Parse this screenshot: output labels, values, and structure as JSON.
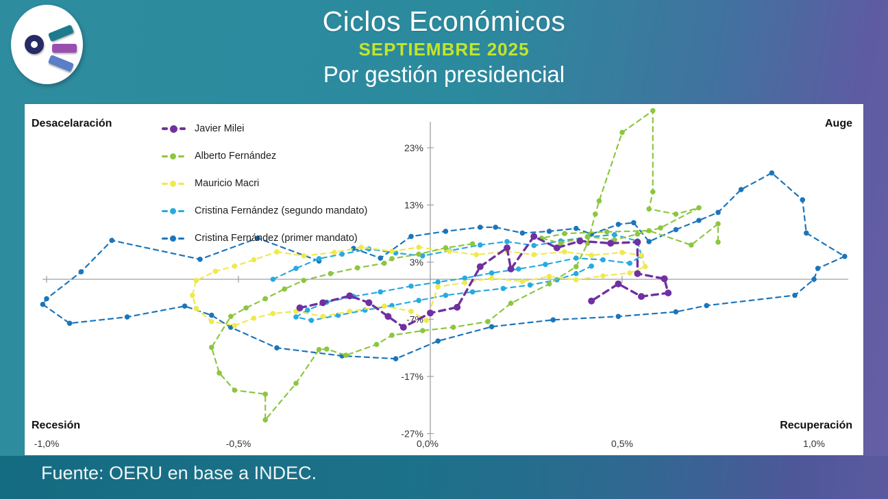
{
  "header": {
    "title": "Ciclos Económicos",
    "subtitle": "SEPTIEMBRE 2025",
    "subtitle2": "Por gestión presidencial",
    "subtitle_color": "#c4e528",
    "logo_colors": {
      "ring": "#272a64",
      "bar_top": "#1c7c8e",
      "bar_mid": "#9a4fae",
      "bar_bottom": "#5b7ec9"
    }
  },
  "footer": {
    "source": "Fuente: OERU en base a INDEC."
  },
  "chart_data": {
    "type": "line",
    "subtype": "connected-scatter cycle plot, dashed lines with point markers",
    "title": "Ciclos Económicos — Por gestión presidencial",
    "xlabel": "",
    "ylabel": "",
    "xlim": [
      -1.09,
      1.13
    ],
    "ylim": [
      -30.8,
      30.8
    ],
    "grid": false,
    "legend_position": "upper left inside plot",
    "axis_color": "#9aa0a6",
    "tick_text_color": "#333333",
    "x_ticks": {
      "values": [
        -1.0,
        -0.5,
        0.0,
        0.5,
        1.0
      ],
      "labels": [
        "-1,0%",
        "-0,5%",
        "0,0%",
        "0,5%",
        "1,0%"
      ]
    },
    "y_ticks": {
      "values": [
        23,
        13,
        3,
        -7,
        -17,
        -27
      ],
      "labels": [
        "23%",
        "13%",
        "3%",
        "-7%",
        "-17%",
        "-27%"
      ]
    },
    "quadrants": {
      "top_left": "Desacelaración",
      "top_right": "Auge",
      "bottom_left": "Recesión",
      "bottom_right": "Recuperación"
    },
    "series": [
      {
        "name": "Javier Milei",
        "color": "#7030a0",
        "emphasis": true,
        "points": [
          [
            -0.34,
            -5.0
          ],
          [
            -0.28,
            -4.1
          ],
          [
            -0.21,
            -2.9
          ],
          [
            -0.16,
            -4.1
          ],
          [
            -0.11,
            -6.5
          ],
          [
            -0.07,
            -8.4
          ],
          [
            0.0,
            -5.9
          ],
          [
            0.07,
            -4.9
          ],
          [
            0.13,
            2.2
          ],
          [
            0.2,
            5.5
          ],
          [
            0.21,
            1.8
          ],
          [
            0.27,
            7.5
          ],
          [
            0.33,
            5.5
          ],
          [
            0.39,
            6.7
          ],
          [
            0.47,
            6.3
          ],
          [
            0.54,
            6.5
          ],
          [
            0.54,
            1.0
          ],
          [
            0.61,
            0.1
          ],
          [
            0.62,
            -2.4
          ],
          [
            0.55,
            -3.0
          ],
          [
            0.49,
            -0.8
          ],
          [
            0.42,
            -3.8
          ]
        ]
      },
      {
        "name": "Alberto Fernández",
        "color": "#8cc63f",
        "emphasis": false,
        "points": [
          [
            0.11,
            6.2
          ],
          [
            0.04,
            5.5
          ],
          [
            -0.03,
            4.4
          ],
          [
            -0.1,
            3.6
          ],
          [
            -0.12,
            2.8
          ],
          [
            -0.19,
            2.0
          ],
          [
            -0.26,
            1.0
          ],
          [
            -0.33,
            -0.2
          ],
          [
            -0.38,
            -1.7
          ],
          [
            -0.43,
            -3.4
          ],
          [
            -0.48,
            -5.0
          ],
          [
            -0.52,
            -6.5
          ],
          [
            -0.57,
            -11.9
          ],
          [
            -0.55,
            -16.4
          ],
          [
            -0.51,
            -19.4
          ],
          [
            -0.43,
            -20.1
          ],
          [
            -0.43,
            -24.6
          ],
          [
            -0.35,
            -18.2
          ],
          [
            -0.29,
            -12.3
          ],
          [
            -0.27,
            -12.2
          ],
          [
            -0.22,
            -13.3
          ],
          [
            -0.14,
            -11.4
          ],
          [
            -0.1,
            -9.8
          ],
          [
            -0.02,
            -9.0
          ],
          [
            0.06,
            -8.4
          ],
          [
            0.15,
            -7.4
          ],
          [
            0.21,
            -4.2
          ],
          [
            0.31,
            -0.8
          ],
          [
            0.38,
            2.2
          ],
          [
            0.41,
            6.3
          ],
          [
            0.43,
            11.4
          ],
          [
            0.44,
            13.7
          ],
          [
            0.5,
            25.7
          ],
          [
            0.58,
            29.5
          ],
          [
            0.58,
            15.3
          ],
          [
            0.57,
            12.3
          ],
          [
            0.64,
            11.4
          ],
          [
            0.7,
            12.5
          ],
          [
            0.6,
            9.0
          ],
          [
            0.54,
            7.9
          ],
          [
            0.48,
            6.9
          ],
          [
            0.41,
            7.5
          ],
          [
            0.34,
            6.3
          ],
          [
            0.29,
            7.2
          ],
          [
            0.35,
            8.0
          ],
          [
            0.46,
            8.3
          ],
          [
            0.57,
            8.5
          ],
          [
            0.68,
            6.0
          ],
          [
            0.75,
            9.7
          ],
          [
            0.75,
            6.5
          ]
        ]
      },
      {
        "name": "Mauricio Macri",
        "color": "#efe94e",
        "emphasis": false,
        "points": [
          [
            -0.4,
            4.8
          ],
          [
            -0.33,
            4.1
          ],
          [
            -0.25,
            4.7
          ],
          [
            -0.18,
            5.6
          ],
          [
            -0.1,
            4.9
          ],
          [
            -0.03,
            5.6
          ],
          [
            0.05,
            4.9
          ],
          [
            0.12,
            4.3
          ],
          [
            0.2,
            4.9
          ],
          [
            0.27,
            4.3
          ],
          [
            0.35,
            4.8
          ],
          [
            0.42,
            4.2
          ],
          [
            0.5,
            4.7
          ],
          [
            0.55,
            4.2
          ],
          [
            0.56,
            2.2
          ],
          [
            0.52,
            1.1
          ],
          [
            0.45,
            0.6
          ],
          [
            0.38,
            -0.1
          ],
          [
            0.31,
            0.5
          ],
          [
            0.24,
            -0.4
          ],
          [
            0.16,
            0.2
          ],
          [
            0.09,
            -0.6
          ],
          [
            0.02,
            -1.3
          ],
          [
            -0.01,
            -7.2
          ],
          [
            -0.05,
            -5.6
          ],
          [
            -0.12,
            -4.7
          ],
          [
            -0.21,
            -5.6
          ],
          [
            -0.28,
            -6.5
          ],
          [
            -0.35,
            -5.6
          ],
          [
            -0.41,
            -6.0
          ],
          [
            -0.46,
            -6.8
          ],
          [
            -0.51,
            -8.1
          ],
          [
            -0.57,
            -7.4
          ],
          [
            -0.61,
            -5.1
          ],
          [
            -0.62,
            -2.8
          ],
          [
            -0.61,
            -0.2
          ],
          [
            -0.56,
            1.4
          ],
          [
            -0.51,
            2.3
          ],
          [
            -0.46,
            3.4
          ],
          [
            -0.4,
            4.8
          ]
        ]
      },
      {
        "name": "Cristina Fernández (segundo mandato)",
        "color": "#27aae1",
        "emphasis": false,
        "points": [
          [
            -0.41,
            0.0
          ],
          [
            -0.35,
            1.9
          ],
          [
            -0.29,
            3.6
          ],
          [
            -0.23,
            4.4
          ],
          [
            -0.16,
            5.3
          ],
          [
            -0.09,
            4.6
          ],
          [
            -0.02,
            4.1
          ],
          [
            0.05,
            5.0
          ],
          [
            0.13,
            6.0
          ],
          [
            0.2,
            6.6
          ],
          [
            0.27,
            5.9
          ],
          [
            0.34,
            6.7
          ],
          [
            0.41,
            7.4
          ],
          [
            0.48,
            7.8
          ],
          [
            0.54,
            6.7
          ],
          [
            0.55,
            4.1
          ],
          [
            0.52,
            2.8
          ],
          [
            0.45,
            3.4
          ],
          [
            0.38,
            3.7
          ],
          [
            0.3,
            2.6
          ],
          [
            0.23,
            1.8
          ],
          [
            0.16,
            1.1
          ],
          [
            0.09,
            0.2
          ],
          [
            0.02,
            -0.5
          ],
          [
            -0.05,
            -1.2
          ],
          [
            -0.13,
            -2.2
          ],
          [
            -0.2,
            -3.0
          ],
          [
            -0.27,
            -4.0
          ],
          [
            -0.32,
            -5.4
          ],
          [
            -0.35,
            -6.6
          ],
          [
            -0.31,
            -7.2
          ],
          [
            -0.24,
            -6.3
          ],
          [
            -0.17,
            -5.4
          ],
          [
            -0.1,
            -4.6
          ],
          [
            -0.03,
            -3.7
          ],
          [
            0.04,
            -2.8
          ],
          [
            0.11,
            -2.2
          ],
          [
            0.19,
            -1.6
          ],
          [
            0.26,
            -1.0
          ],
          [
            0.33,
            -0.1
          ],
          [
            0.38,
            1.0
          ],
          [
            0.42,
            2.3
          ]
        ]
      },
      {
        "name": "Cristina Fernández (primer mandato)",
        "color": "#1b75bb",
        "emphasis": false,
        "points": [
          [
            -0.2,
            5.4
          ],
          [
            -0.13,
            3.7
          ],
          [
            -0.05,
            7.5
          ],
          [
            0.04,
            8.4
          ],
          [
            0.13,
            9.1
          ],
          [
            0.17,
            9.1
          ],
          [
            0.24,
            8.1
          ],
          [
            0.31,
            8.4
          ],
          [
            0.38,
            8.9
          ],
          [
            0.42,
            7.9
          ],
          [
            0.49,
            9.6
          ],
          [
            0.53,
            9.9
          ],
          [
            0.57,
            6.6
          ],
          [
            0.64,
            8.7
          ],
          [
            0.7,
            10.3
          ],
          [
            0.75,
            11.7
          ],
          [
            0.81,
            15.7
          ],
          [
            0.89,
            18.6
          ],
          [
            0.97,
            13.9
          ],
          [
            0.98,
            8.1
          ],
          [
            1.08,
            4.0
          ],
          [
            1.01,
            1.9
          ],
          [
            1.0,
            0.0
          ],
          [
            0.95,
            -2.8
          ],
          [
            0.72,
            -4.6
          ],
          [
            0.64,
            -5.7
          ],
          [
            0.49,
            -6.5
          ],
          [
            0.32,
            -7.1
          ],
          [
            0.16,
            -8.3
          ],
          [
            0.02,
            -10.8
          ],
          [
            -0.09,
            -13.9
          ],
          [
            -0.23,
            -13.4
          ],
          [
            -0.4,
            -12.0
          ],
          [
            -0.52,
            -8.4
          ],
          [
            -0.57,
            -6.3
          ],
          [
            -0.64,
            -4.7
          ],
          [
            -0.79,
            -6.6
          ],
          [
            -0.94,
            -7.7
          ],
          [
            -1.01,
            -4.4
          ],
          [
            -1.0,
            -3.4
          ],
          [
            -0.91,
            1.3
          ],
          [
            -0.83,
            6.8
          ],
          [
            -0.6,
            3.5
          ],
          [
            -0.45,
            7.2
          ],
          [
            -0.29,
            3.2
          ]
        ]
      }
    ]
  }
}
